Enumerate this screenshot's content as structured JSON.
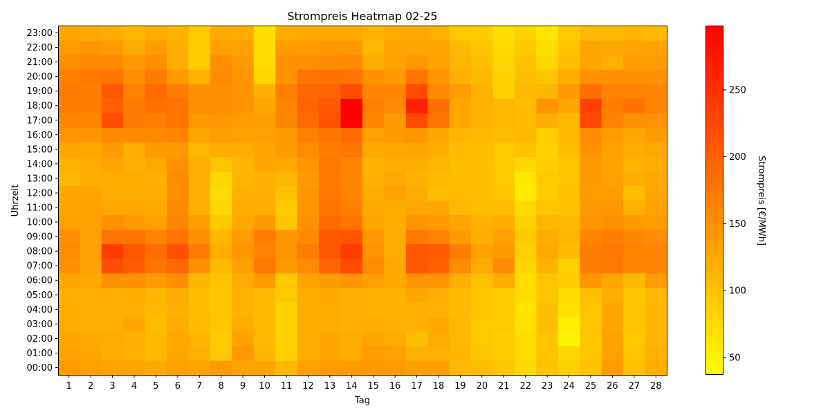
{
  "chart_data": {
    "type": "heatmap",
    "title": "Strompreis Heatmap 02-25",
    "xlabel": "Tag",
    "ylabel": "Uhrzeit",
    "colorbar_label": "Strompreis [€/MWh]",
    "colormap": "autumn_r",
    "colors": {
      "low": "#ffff00",
      "high": "#ff0000"
    },
    "clim": [
      37,
      298
    ],
    "colorbar_ticks": [
      50,
      100,
      150,
      200,
      250
    ],
    "grid": false,
    "x": [
      "1",
      "2",
      "3",
      "4",
      "5",
      "6",
      "7",
      "8",
      "9",
      "10",
      "11",
      "12",
      "13",
      "14",
      "15",
      "16",
      "17",
      "18",
      "19",
      "20",
      "21",
      "22",
      "23",
      "24",
      "25",
      "26",
      "27",
      "28"
    ],
    "y": [
      "00:00",
      "01:00",
      "02:00",
      "03:00",
      "04:00",
      "05:00",
      "06:00",
      "07:00",
      "08:00",
      "09:00",
      "10:00",
      "11:00",
      "12:00",
      "13:00",
      "14:00",
      "15:00",
      "16:00",
      "17:00",
      "18:00",
      "19:00",
      "20:00",
      "21:00",
      "22:00",
      "23:00"
    ],
    "values": [
      [
        140,
        135,
        130,
        130,
        125,
        135,
        130,
        140,
        130,
        130,
        110,
        135,
        140,
        140,
        140,
        140,
        135,
        135,
        110,
        105,
        95,
        75,
        100,
        85,
        100,
        140,
        100,
        120
      ],
      [
        132,
        128,
        120,
        118,
        108,
        128,
        118,
        92,
        142,
        112,
        85,
        122,
        128,
        122,
        138,
        135,
        118,
        118,
        112,
        95,
        88,
        72,
        98,
        78,
        95,
        135,
        95,
        118
      ],
      [
        128,
        125,
        122,
        118,
        108,
        125,
        112,
        90,
        132,
        110,
        82,
        122,
        128,
        120,
        128,
        122,
        102,
        122,
        108,
        92,
        88,
        72,
        98,
        48,
        95,
        132,
        92,
        112
      ],
      [
        122,
        118,
        118,
        128,
        105,
        122,
        105,
        96,
        122,
        108,
        82,
        122,
        122,
        118,
        120,
        118,
        118,
        125,
        108,
        92,
        90,
        68,
        102,
        52,
        98,
        128,
        98,
        112
      ],
      [
        120,
        118,
        118,
        118,
        110,
        118,
        102,
        96,
        118,
        106,
        82,
        122,
        122,
        118,
        115,
        116,
        118,
        115,
        106,
        95,
        90,
        65,
        102,
        68,
        98,
        128,
        98,
        112
      ],
      [
        118,
        118,
        118,
        120,
        112,
        122,
        102,
        94,
        118,
        108,
        92,
        120,
        126,
        118,
        115,
        116,
        128,
        118,
        106,
        94,
        88,
        72,
        96,
        72,
        104,
        120,
        94,
        110
      ],
      [
        128,
        126,
        150,
        150,
        140,
        152,
        112,
        98,
        122,
        140,
        90,
        132,
        138,
        148,
        135,
        125,
        148,
        145,
        118,
        100,
        120,
        70,
        98,
        88,
        145,
        128,
        108,
        140
      ],
      [
        150,
        135,
        218,
        205,
        180,
        190,
        150,
        108,
        135,
        175,
        140,
        155,
        195,
        222,
        155,
        125,
        210,
        200,
        155,
        122,
        155,
        80,
        115,
        85,
        170,
        175,
        160,
        162
      ],
      [
        155,
        135,
        238,
        210,
        185,
        215,
        170,
        120,
        145,
        165,
        148,
        170,
        208,
        238,
        148,
        122,
        210,
        205,
        170,
        132,
        140,
        85,
        125,
        108,
        170,
        175,
        165,
        162
      ],
      [
        150,
        135,
        180,
        180,
        165,
        180,
        152,
        112,
        138,
        170,
        145,
        158,
        208,
        212,
        142,
        122,
        172,
        165,
        140,
        120,
        135,
        90,
        120,
        112,
        160,
        170,
        160,
        152
      ],
      [
        135,
        135,
        150,
        140,
        135,
        160,
        138,
        92,
        126,
        142,
        96,
        150,
        190,
        178,
        130,
        122,
        145,
        140,
        130,
        118,
        120,
        85,
        112,
        110,
        145,
        150,
        140,
        138
      ],
      [
        130,
        132,
        128,
        128,
        125,
        158,
        118,
        78,
        122,
        120,
        92,
        145,
        178,
        168,
        125,
        122,
        128,
        128,
        108,
        105,
        105,
        75,
        96,
        100,
        142,
        145,
        118,
        132
      ],
      [
        128,
        130,
        122,
        122,
        120,
        156,
        118,
        72,
        118,
        118,
        100,
        145,
        175,
        162,
        122,
        135,
        122,
        102,
        105,
        102,
        96,
        60,
        90,
        100,
        138,
        138,
        102,
        128
      ],
      [
        112,
        120,
        122,
        122,
        118,
        156,
        118,
        78,
        112,
        118,
        112,
        140,
        172,
        160,
        118,
        125,
        115,
        108,
        102,
        102,
        92,
        62,
        92,
        95,
        140,
        132,
        120,
        125
      ],
      [
        118,
        120,
        128,
        118,
        126,
        150,
        118,
        96,
        112,
        128,
        125,
        144,
        175,
        162,
        115,
        120,
        120,
        112,
        102,
        104,
        90,
        78,
        88,
        95,
        140,
        132,
        114,
        120
      ],
      [
        128,
        126,
        140,
        118,
        140,
        140,
        110,
        120,
        122,
        128,
        140,
        155,
        170,
        178,
        126,
        126,
        130,
        120,
        102,
        104,
        92,
        100,
        84,
        104,
        150,
        132,
        122,
        126
      ],
      [
        145,
        145,
        158,
        158,
        158,
        165,
        128,
        138,
        135,
        135,
        140,
        168,
        178,
        190,
        135,
        140,
        145,
        128,
        112,
        108,
        106,
        108,
        88,
        108,
        155,
        140,
        128,
        138
      ],
      [
        160,
        162,
        220,
        172,
        168,
        178,
        140,
        142,
        138,
        136,
        160,
        190,
        215,
        296,
        160,
        140,
        222,
        180,
        125,
        115,
        110,
        106,
        120,
        108,
        225,
        165,
        150,
        148
      ],
      [
        170,
        170,
        200,
        172,
        182,
        180,
        152,
        152,
        148,
        128,
        162,
        198,
        208,
        296,
        168,
        155,
        265,
        185,
        128,
        115,
        110,
        106,
        148,
        128,
        232,
        170,
        182,
        160
      ],
      [
        172,
        170,
        210,
        165,
        188,
        170,
        150,
        150,
        148,
        118,
        168,
        192,
        198,
        220,
        162,
        162,
        222,
        158,
        138,
        115,
        84,
        108,
        112,
        140,
        185,
        165,
        165,
        162
      ],
      [
        168,
        172,
        178,
        152,
        172,
        140,
        118,
        155,
        148,
        78,
        150,
        180,
        182,
        180,
        150,
        140,
        178,
        148,
        118,
        110,
        84,
        102,
        98,
        122,
        150,
        150,
        150,
        150
      ],
      [
        152,
        158,
        158,
        142,
        152,
        120,
        88,
        152,
        140,
        72,
        150,
        152,
        155,
        158,
        122,
        132,
        142,
        132,
        112,
        102,
        80,
        100,
        78,
        105,
        130,
        118,
        138,
        138
      ],
      [
        140,
        145,
        140,
        122,
        138,
        120,
        88,
        135,
        132,
        72,
        140,
        140,
        142,
        142,
        110,
        130,
        130,
        130,
        108,
        95,
        75,
        90,
        70,
        98,
        130,
        128,
        130,
        132
      ],
      [
        128,
        125,
        120,
        112,
        120,
        115,
        92,
        125,
        122,
        70,
        120,
        125,
        125,
        125,
        115,
        122,
        125,
        118,
        92,
        88,
        70,
        82,
        62,
        92,
        108,
        108,
        112,
        108
      ]
    ]
  }
}
